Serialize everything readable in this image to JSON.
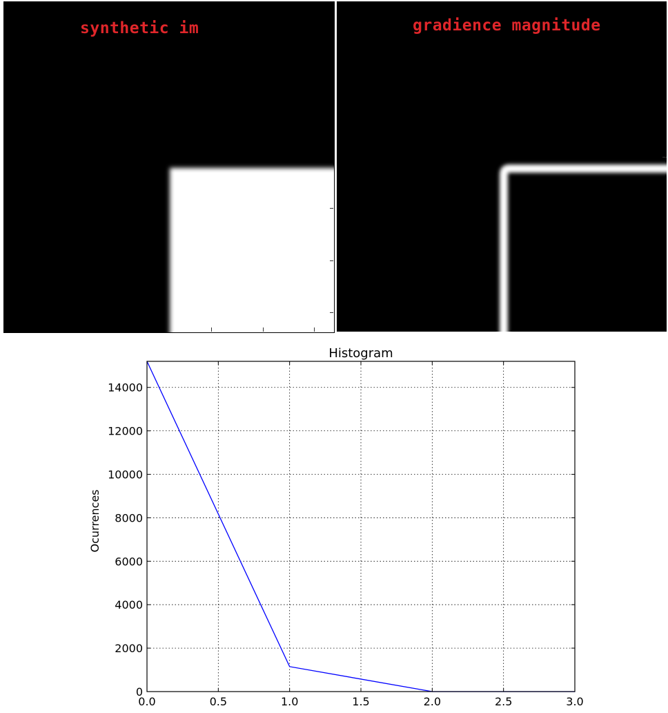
{
  "images": {
    "left": {
      "title": "synthetic im"
    },
    "right": {
      "title": "gradience magnitude"
    }
  },
  "chart_data": {
    "type": "line",
    "title": "Histogram",
    "xlabel": "",
    "ylabel": "Ocurrences",
    "x": [
      0,
      1,
      2,
      3
    ],
    "series": [
      {
        "name": "",
        "color": "#0000ff",
        "values": [
          15200,
          1150,
          0,
          0
        ]
      }
    ],
    "xlim": [
      0,
      3
    ],
    "ylim": [
      0,
      15200
    ],
    "xticks": [
      "0.0",
      "0.5",
      "1.0",
      "1.5",
      "2.0",
      "2.5",
      "3.0"
    ],
    "yticks": [
      "0",
      "2000",
      "4000",
      "6000",
      "8000",
      "10000",
      "12000",
      "14000"
    ],
    "grid": true
  }
}
